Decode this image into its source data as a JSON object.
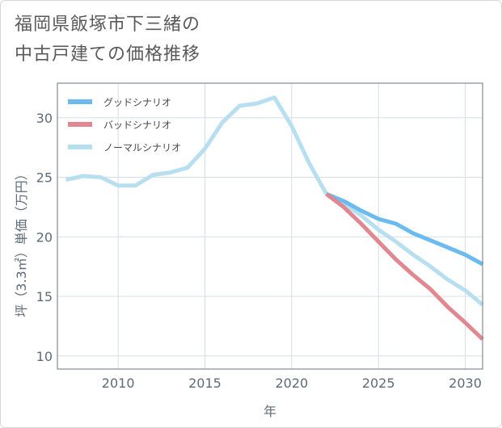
{
  "title_lines": [
    "福岡県飯塚市下三緒の",
    "中古戸建ての価格推移"
  ],
  "chart_data": {
    "type": "line",
    "title": "福岡県飯塚市下三緒の中古戸建ての価格推移",
    "xlabel": "年",
    "ylabel": "坪（3.3㎡）単価（万円）",
    "xlim": [
      2006.5,
      2031
    ],
    "ylim": [
      8.9,
      32.9
    ],
    "xticks": [
      2010,
      2015,
      2020,
      2025,
      2030
    ],
    "yticks": [
      10,
      15,
      20,
      25,
      30
    ],
    "grid": true,
    "legend_position": "top-left",
    "series": [
      {
        "name": "グッドシナリオ",
        "color": "#6bbbef",
        "x": [
          2022,
          2023,
          2024,
          2025,
          2026,
          2027,
          2028,
          2029,
          2030,
          2031
        ],
        "y": [
          23.6,
          23.0,
          22.2,
          21.5,
          21.1,
          20.3,
          19.7,
          19.1,
          18.5,
          17.7
        ]
      },
      {
        "name": "バッドシナリオ",
        "color": "#e0878f",
        "x": [
          2022,
          2023,
          2024,
          2025,
          2026,
          2027,
          2028,
          2029,
          2030,
          2031
        ],
        "y": [
          23.6,
          22.5,
          21.1,
          19.6,
          18.1,
          16.8,
          15.6,
          14.1,
          12.8,
          11.4
        ]
      },
      {
        "name": "ノーマルシナリオ",
        "color": "#b7dff0",
        "x": [
          2007,
          2008,
          2009,
          2010,
          2011,
          2012,
          2013,
          2014,
          2015,
          2016,
          2017,
          2018,
          2019,
          2020,
          2021,
          2022,
          2023,
          2024,
          2025,
          2026,
          2027,
          2028,
          2029,
          2030,
          2031
        ],
        "y": [
          24.8,
          25.1,
          25.0,
          24.3,
          24.3,
          25.2,
          25.4,
          25.8,
          27.4,
          29.6,
          31.0,
          31.2,
          31.7,
          29.3,
          26.2,
          23.6,
          22.8,
          21.8,
          20.6,
          19.6,
          18.5,
          17.5,
          16.4,
          15.5,
          14.3
        ]
      }
    ]
  }
}
